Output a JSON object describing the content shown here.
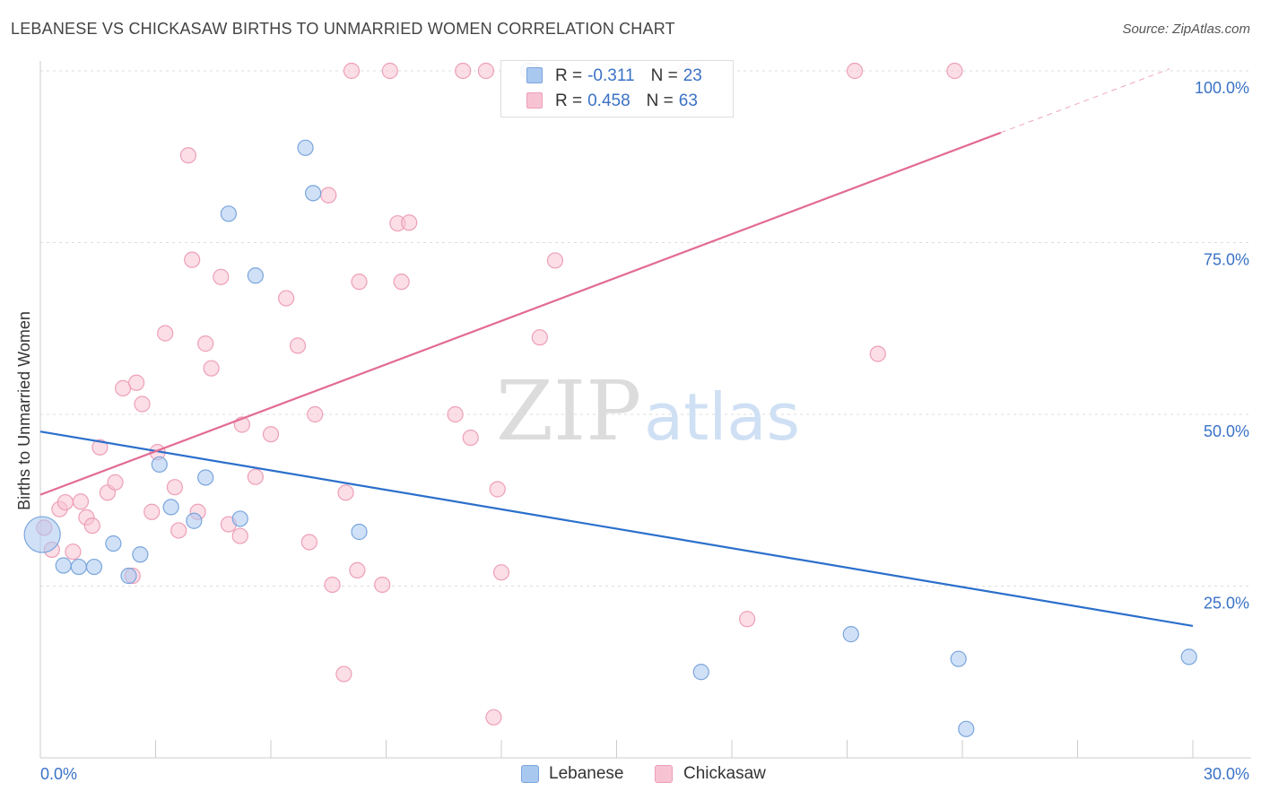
{
  "title": "LEBANESE VS CHICKASAW BIRTHS TO UNMARRIED WOMEN CORRELATION CHART",
  "source": "Source: ZipAtlas.com",
  "watermark": {
    "zip": "ZIP",
    "atlas": "atlas"
  },
  "colors": {
    "lebanese_fill": "#a9c8f0",
    "lebanese_stroke": "#7aa5dc",
    "lebanese_line": "#2b6fcb",
    "chickasaw_fill": "#f7c3d2",
    "chickasaw_stroke": "#ee9fb8",
    "chickasaw_line": "#e26b94",
    "axis_label": "#3a72c6",
    "grid": "#dddddd"
  },
  "legend": {
    "lebanese": {
      "r_label": "R =",
      "r_value": "-0.311",
      "n_label": "N =",
      "n_value": "23"
    },
    "chickasaw": {
      "r_label": "R =",
      "r_value": "0.458",
      "n_label": "N =",
      "n_value": "63"
    }
  },
  "chart_data": {
    "type": "scatter",
    "title": "LEBANESE VS CHICKASAW BIRTHS TO UNMARRIED WOMEN CORRELATION CHART",
    "xlabel": "",
    "ylabel": "Births to Unmarried Women",
    "xlim": [
      0,
      30
    ],
    "ylim": [
      0,
      100
    ],
    "x_tick_labels": [
      "0.0%",
      "30.0%"
    ],
    "y_ticks": [
      25,
      50,
      75,
      100
    ],
    "y_tick_labels": [
      "25.0%",
      "50.0%",
      "75.0%",
      "100.0%"
    ],
    "grid": true,
    "legend_position": "top-center",
    "series": [
      {
        "name": "Lebanese",
        "r": -0.311,
        "n": 23,
        "trend": {
          "x": [
            0,
            30
          ],
          "y": [
            47.5,
            19.2
          ]
        },
        "points": [
          {
            "x": 0.05,
            "y": 32.5,
            "big": true
          },
          {
            "x": 0.6,
            "y": 28
          },
          {
            "x": 1.0,
            "y": 27.8
          },
          {
            "x": 1.4,
            "y": 27.8
          },
          {
            "x": 1.9,
            "y": 31.2
          },
          {
            "x": 2.3,
            "y": 26.5
          },
          {
            "x": 2.6,
            "y": 29.6
          },
          {
            "x": 3.1,
            "y": 42.7
          },
          {
            "x": 3.4,
            "y": 36.5
          },
          {
            "x": 4.0,
            "y": 34.5
          },
          {
            "x": 4.3,
            "y": 40.8
          },
          {
            "x": 4.9,
            "y": 79.2
          },
          {
            "x": 5.2,
            "y": 34.8
          },
          {
            "x": 5.6,
            "y": 70.2
          },
          {
            "x": 6.9,
            "y": 88.8
          },
          {
            "x": 7.1,
            "y": 82.2
          },
          {
            "x": 8.3,
            "y": 32.9
          },
          {
            "x": 12.7,
            "y": 100.0
          },
          {
            "x": 17.2,
            "y": 12.5
          },
          {
            "x": 21.1,
            "y": 18.0
          },
          {
            "x": 23.9,
            "y": 14.4
          },
          {
            "x": 24.1,
            "y": 4.2
          },
          {
            "x": 29.9,
            "y": 14.7
          }
        ]
      },
      {
        "name": "Chickasaw",
        "r": 0.458,
        "n": 63,
        "trend": {
          "x": [
            0,
            25.0
          ],
          "y": [
            38.3,
            91.0
          ]
        },
        "trend_dashed": {
          "x": [
            25.0,
            29.4
          ],
          "y": [
            91.0,
            100.3
          ]
        },
        "points": [
          {
            "x": 0.1,
            "y": 33.5
          },
          {
            "x": 0.3,
            "y": 30.3
          },
          {
            "x": 0.5,
            "y": 36.2
          },
          {
            "x": 0.65,
            "y": 37.2
          },
          {
            "x": 0.85,
            "y": 30
          },
          {
            "x": 1.05,
            "y": 37.3
          },
          {
            "x": 1.2,
            "y": 35
          },
          {
            "x": 1.35,
            "y": 33.8
          },
          {
            "x": 1.55,
            "y": 45.2
          },
          {
            "x": 1.75,
            "y": 38.6
          },
          {
            "x": 1.95,
            "y": 40.1
          },
          {
            "x": 2.15,
            "y": 53.8
          },
          {
            "x": 2.4,
            "y": 26.5
          },
          {
            "x": 2.5,
            "y": 54.6
          },
          {
            "x": 2.65,
            "y": 51.5
          },
          {
            "x": 2.9,
            "y": 35.8
          },
          {
            "x": 3.05,
            "y": 44.5
          },
          {
            "x": 3.25,
            "y": 61.8
          },
          {
            "x": 3.5,
            "y": 39.4
          },
          {
            "x": 3.6,
            "y": 33.1
          },
          {
            "x": 3.85,
            "y": 87.7
          },
          {
            "x": 3.95,
            "y": 72.5
          },
          {
            "x": 4.1,
            "y": 35.8
          },
          {
            "x": 4.3,
            "y": 60.3
          },
          {
            "x": 4.45,
            "y": 56.7
          },
          {
            "x": 4.7,
            "y": 70.0
          },
          {
            "x": 4.9,
            "y": 34.0
          },
          {
            "x": 5.2,
            "y": 32.3
          },
          {
            "x": 5.25,
            "y": 48.5
          },
          {
            "x": 5.6,
            "y": 40.9
          },
          {
            "x": 6.0,
            "y": 47.1
          },
          {
            "x": 6.4,
            "y": 66.9
          },
          {
            "x": 6.7,
            "y": 60.0
          },
          {
            "x": 7.0,
            "y": 31.4
          },
          {
            "x": 7.15,
            "y": 50.0
          },
          {
            "x": 7.5,
            "y": 81.9
          },
          {
            "x": 7.6,
            "y": 25.2
          },
          {
            "x": 7.9,
            "y": 12.2
          },
          {
            "x": 7.95,
            "y": 38.6
          },
          {
            "x": 8.1,
            "y": 100
          },
          {
            "x": 8.3,
            "y": 69.3
          },
          {
            "x": 8.25,
            "y": 27.3
          },
          {
            "x": 8.9,
            "y": 25.2
          },
          {
            "x": 9.1,
            "y": 100
          },
          {
            "x": 9.3,
            "y": 77.8
          },
          {
            "x": 9.6,
            "y": 77.9
          },
          {
            "x": 9.4,
            "y": 69.3
          },
          {
            "x": 10.8,
            "y": 50.0
          },
          {
            "x": 11.0,
            "y": 100
          },
          {
            "x": 11.2,
            "y": 46.6
          },
          {
            "x": 11.6,
            "y": 100
          },
          {
            "x": 11.8,
            "y": 5.9
          },
          {
            "x": 11.9,
            "y": 39.1
          },
          {
            "x": 12.0,
            "y": 27.0
          },
          {
            "x": 13.0,
            "y": 61.2
          },
          {
            "x": 13.4,
            "y": 72.4
          },
          {
            "x": 16.8,
            "y": 100
          },
          {
            "x": 18.4,
            "y": 20.2
          },
          {
            "x": 21.2,
            "y": 100
          },
          {
            "x": 21.8,
            "y": 58.8
          },
          {
            "x": 23.8,
            "y": 100
          },
          {
            "x": 12.8,
            "y": 100
          },
          {
            "x": 17.0,
            "y": 100
          }
        ]
      }
    ]
  }
}
